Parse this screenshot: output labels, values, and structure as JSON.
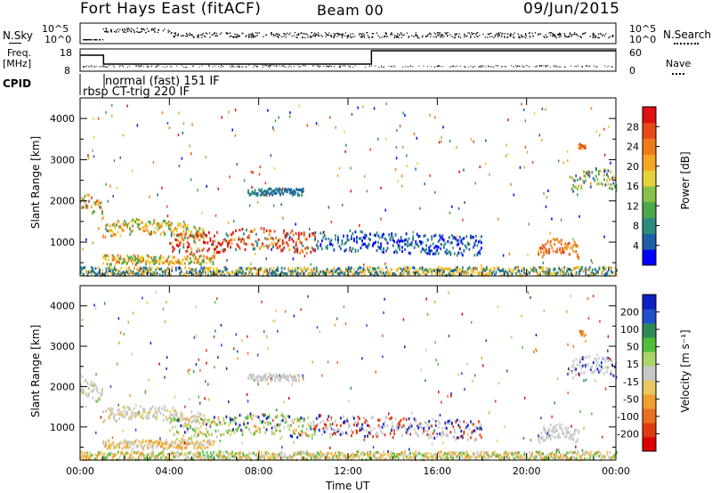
{
  "header": {
    "title": "Fort Hays East (fitACF)",
    "beam": "Beam 00",
    "date": "09/Jun/2015"
  },
  "top_panels": {
    "nsky_label": "N.Sky",
    "nsky_ticks": [
      "10^5",
      "10^0"
    ],
    "nsearch_label": "N.Search",
    "nsearch_ticks": [
      "10^5",
      "10^0"
    ],
    "freq_label": "Freq.",
    "freq_unit": "[MHz]",
    "freq_ticks": [
      "18",
      "8"
    ],
    "nave_label": "Nave",
    "nave_ticks": [
      "60",
      "0"
    ],
    "cpid_label": "CPID",
    "cpid_entries": [
      "normal (fast) 151 IF",
      "rbsp CT-trig 220 IF"
    ]
  },
  "colors": {
    "power": [
      "#0000ff",
      "#1f5fa8",
      "#2c8b7c",
      "#4ba84b",
      "#86c14a",
      "#e6d33b",
      "#f6a623",
      "#f07b1b",
      "#e84a17",
      "#e01010"
    ],
    "velocity": [
      "#1020c0",
      "#2050c8",
      "#2e8b57",
      "#4fbf3a",
      "#a8d46a",
      "#c8c8c8",
      "#e8c860",
      "#f0a030",
      "#e87020",
      "#e03a10",
      "#dc0000"
    ]
  },
  "chart_data": [
    {
      "type": "heatmap",
      "name_ref": "power",
      "ylabel": "Slant Range [km]",
      "colorbar_label": "Power [dB]",
      "colorbar_ticks": [
        "28",
        "24",
        "20",
        "16",
        "12",
        "8",
        "4"
      ],
      "xlim_hours": [
        0,
        24
      ],
      "ylim": [
        180,
        4500
      ],
      "y_ticks": [
        "4000",
        "3000",
        "2000",
        "1000"
      ],
      "y_tick_values": [
        4000,
        3000,
        2000,
        1000
      ],
      "x_tick_labels": [
        "00:00",
        "04:00",
        "08:00",
        "12:00",
        "16:00",
        "20:00",
        "00:00"
      ],
      "x_tick_values": [
        0,
        4,
        8,
        12,
        16,
        20,
        24
      ]
    },
    {
      "type": "heatmap",
      "name_ref": "velocity",
      "ylabel": "Slant Range [km]",
      "colorbar_label": "Velocity [m s⁻¹]",
      "colorbar_ticks": [
        "200",
        "100",
        "50",
        "15",
        "-15",
        "-50",
        "-100",
        "-200"
      ],
      "xlim_hours": [
        0,
        24
      ],
      "ylim": [
        180,
        4500
      ],
      "y_ticks": [
        "4000",
        "3000",
        "2000",
        "1000"
      ],
      "y_tick_values": [
        4000,
        3000,
        2000,
        1000
      ],
      "x_tick_labels": [
        "00:00",
        "04:00",
        "08:00",
        "12:00",
        "16:00",
        "20:00",
        "00:00"
      ],
      "x_tick_values": [
        0,
        4,
        8,
        12,
        16,
        20,
        24
      ],
      "xlabel": "Time UT"
    }
  ]
}
